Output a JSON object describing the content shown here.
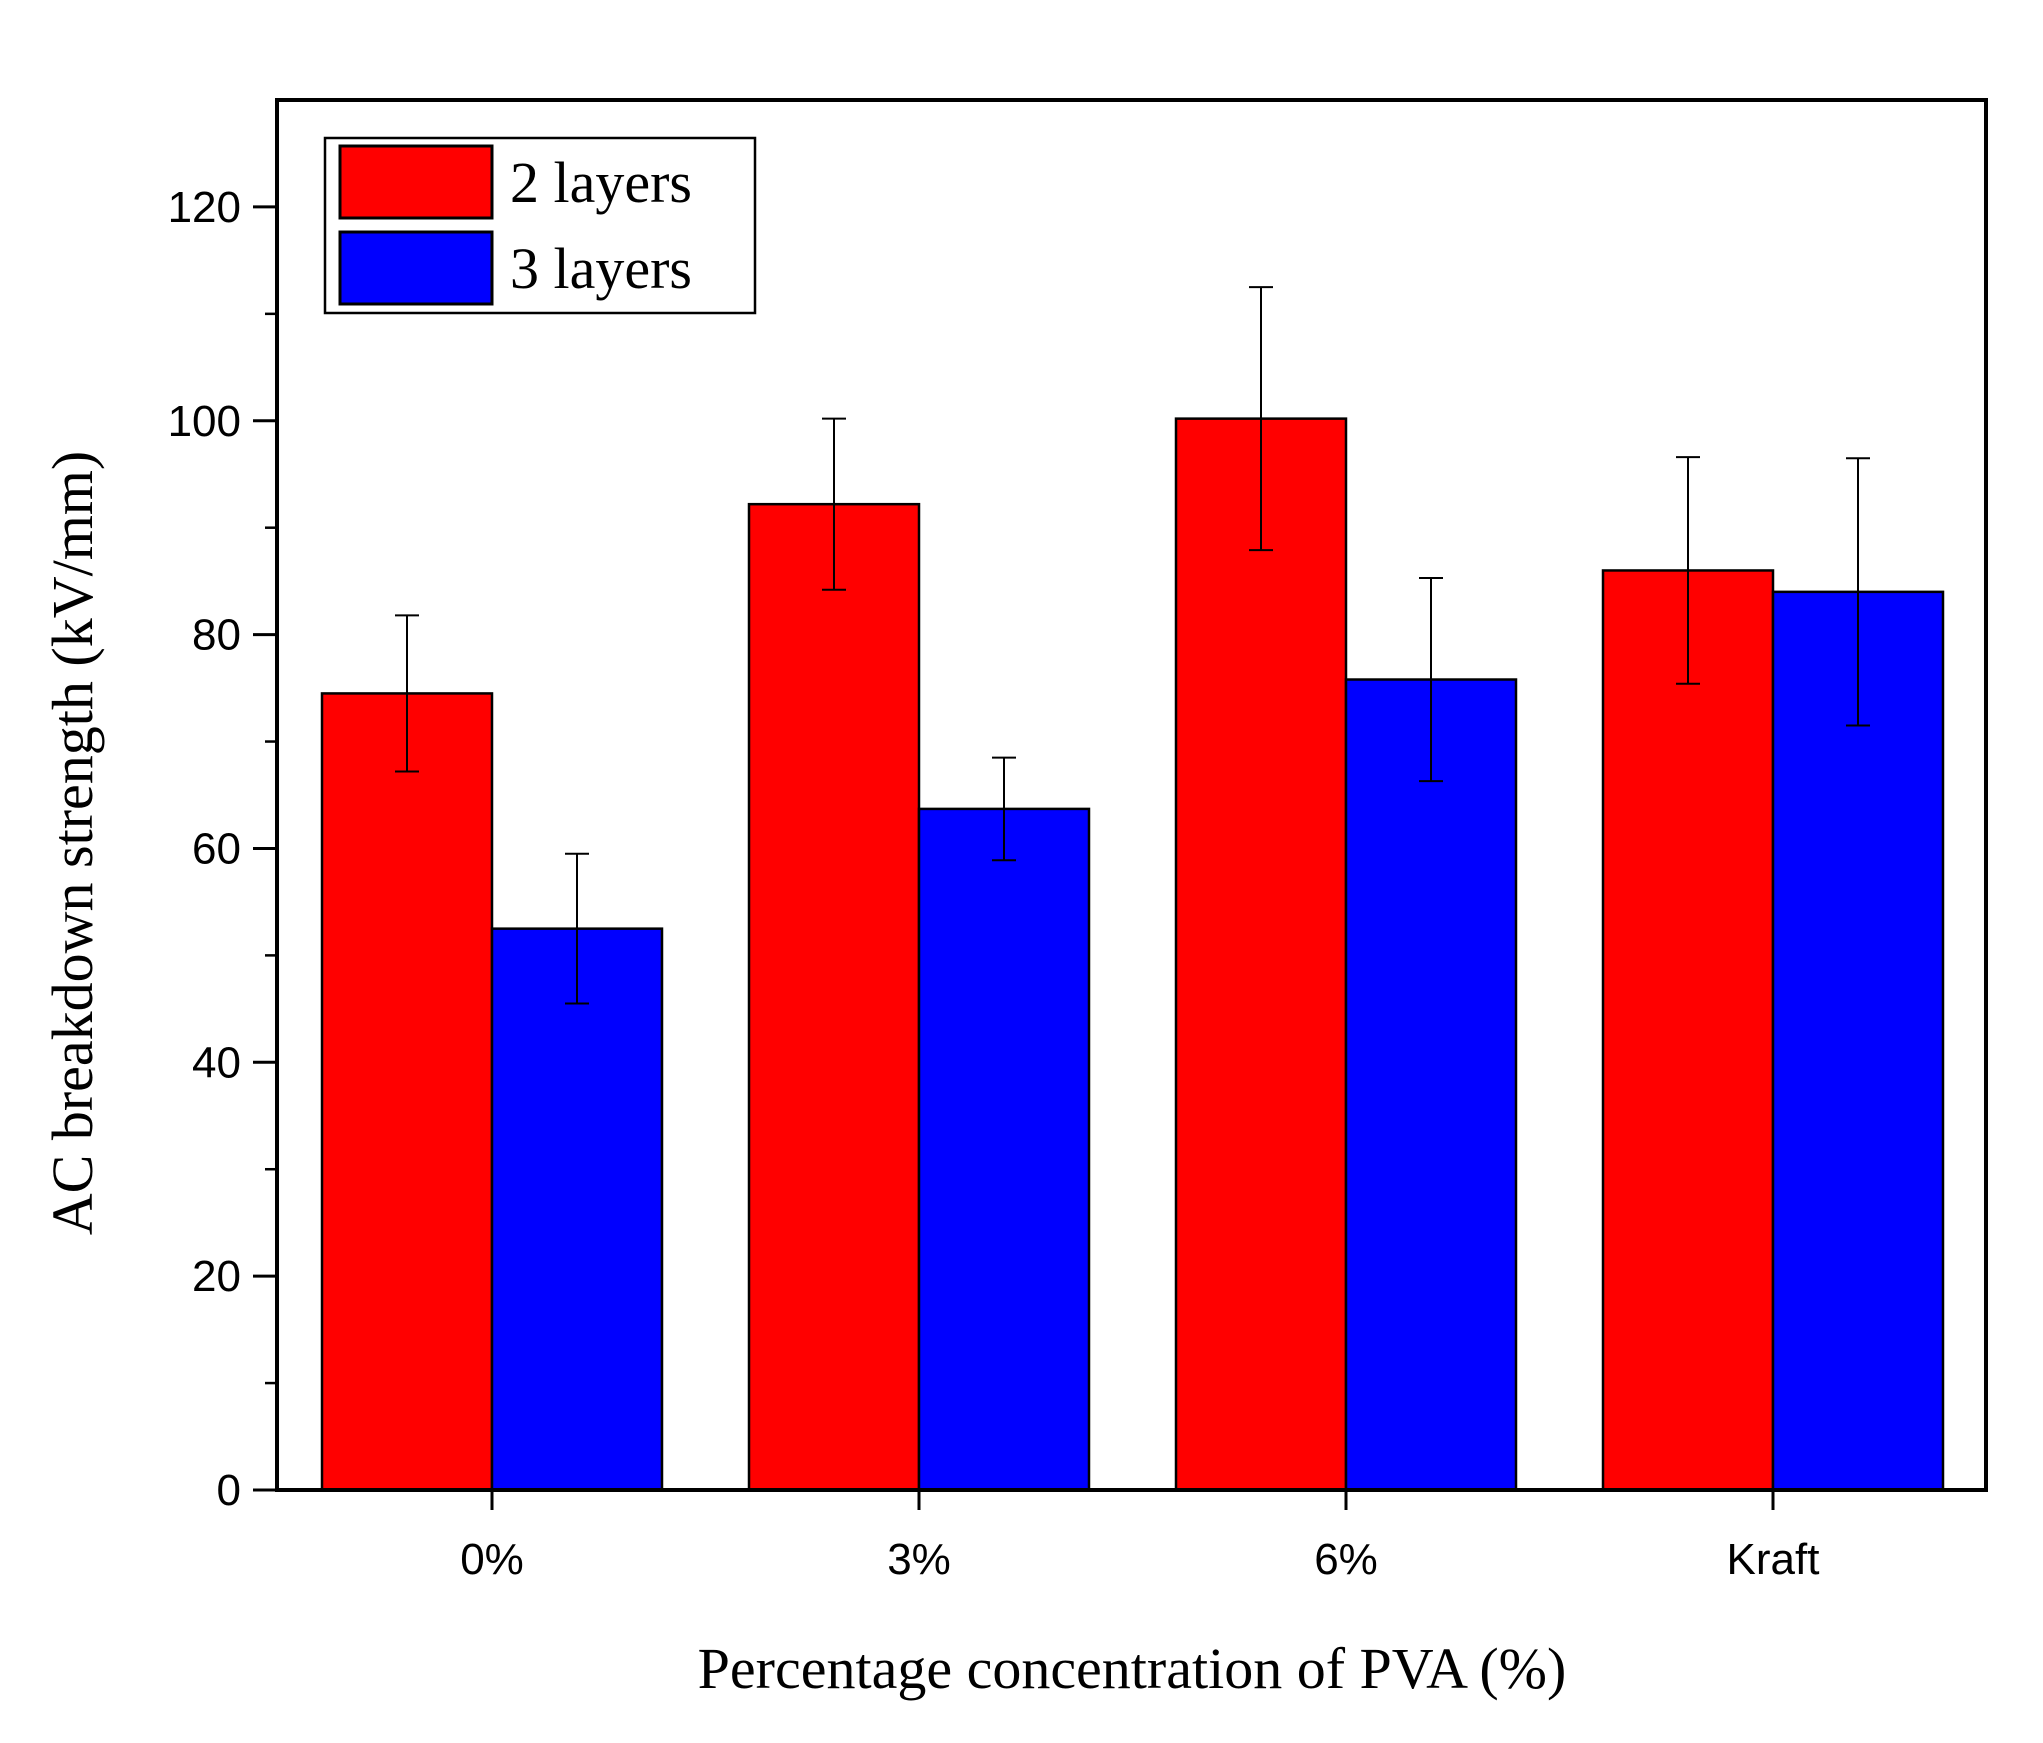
{
  "chart_data": {
    "type": "bar",
    "categories": [
      "0%",
      "3%",
      "6%",
      "Kraft"
    ],
    "series": [
      {
        "name": "2 layers",
        "color": "#ff0000",
        "values": [
          74.5,
          92.2,
          100.2,
          86.0
        ],
        "error": [
          7.3,
          8.0,
          12.3,
          10.6
        ]
      },
      {
        "name": "3 layers",
        "color": "#0000ff",
        "values": [
          52.5,
          63.7,
          75.8,
          84.0
        ],
        "error": [
          7.0,
          4.8,
          9.5,
          12.5
        ]
      }
    ],
    "xlabel": "Percentage concentration of PVA (%)",
    "ylabel": "AC breakdown strength (kV/mm)",
    "ylim": [
      0,
      130
    ],
    "yticks": [
      0,
      20,
      40,
      60,
      80,
      100,
      120
    ],
    "grid": false,
    "legend_position": "top-left"
  }
}
